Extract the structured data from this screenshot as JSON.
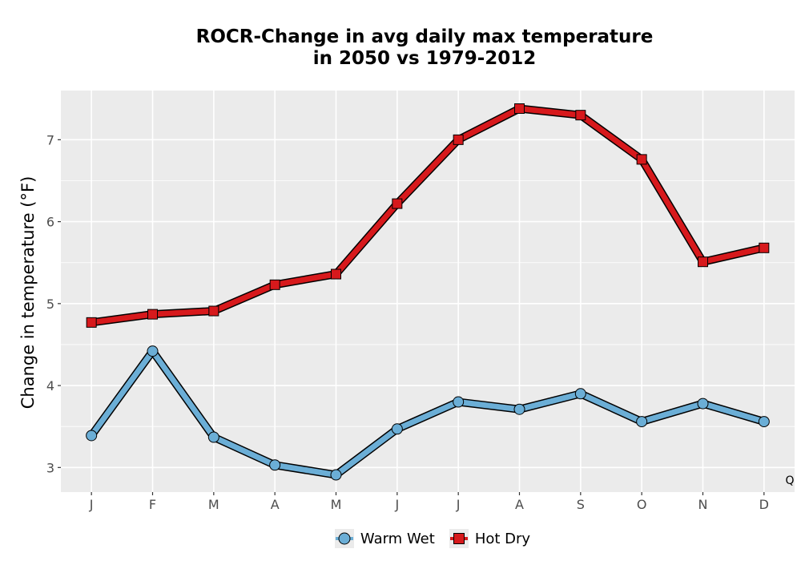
{
  "chart_data": {
    "type": "line",
    "title_lines": [
      "ROCR-Change in avg daily max temperature",
      "in 2050 vs 1979-2012"
    ],
    "xlabel": "",
    "ylabel": "Change in temperature (°F)",
    "categories": [
      "J",
      "F",
      "M",
      "A",
      "M",
      "J",
      "J",
      "A",
      "S",
      "O",
      "N",
      "D"
    ],
    "ylim": [
      2.7,
      7.6
    ],
    "yticks": [
      3,
      4,
      5,
      6,
      7
    ],
    "grid": true,
    "legend_position": "bottom",
    "corner_mark": "Q",
    "series": [
      {
        "name": "Warm Wet",
        "marker": "circle",
        "color": "#6baed6",
        "values": [
          3.39,
          4.42,
          3.37,
          3.03,
          2.91,
          3.47,
          3.8,
          3.71,
          3.9,
          3.56,
          3.78,
          3.56
        ]
      },
      {
        "name": "Hot Dry",
        "marker": "square",
        "color": "#d7191c",
        "values": [
          4.77,
          4.87,
          4.91,
          5.23,
          5.36,
          6.22,
          7.0,
          7.38,
          7.3,
          6.76,
          5.51,
          5.68
        ]
      }
    ]
  }
}
